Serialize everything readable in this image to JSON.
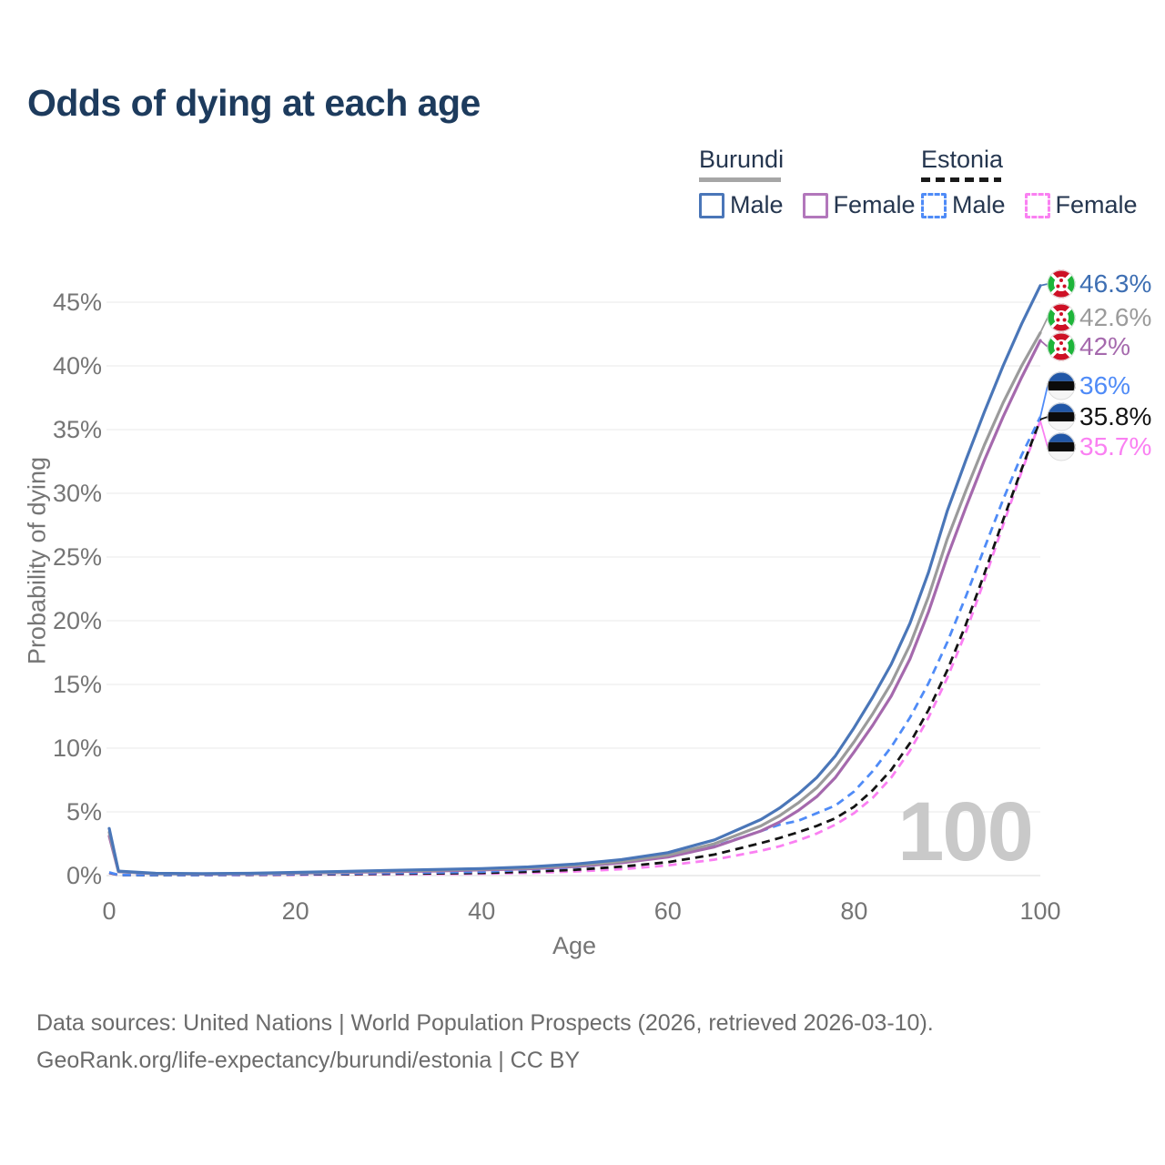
{
  "title": "Odds of dying at each age",
  "legend": {
    "groups": [
      {
        "name": "Burundi",
        "line_style": "solid",
        "underline_color": "#a6a6a6",
        "items": [
          {
            "label": "Male",
            "color": "#4a76b8"
          },
          {
            "label": "Female",
            "color": "#b277bb"
          }
        ]
      },
      {
        "name": "Estonia",
        "line_style": "dashed",
        "underline_color": "#1a1a1a",
        "items": [
          {
            "label": "Male",
            "color": "#4f8bf7"
          },
          {
            "label": "Female",
            "color": "#fa80f2"
          }
        ]
      }
    ]
  },
  "chart_data": {
    "type": "line",
    "title": "Odds of dying at each age",
    "xlabel": "Age",
    "ylabel": "Probability of dying",
    "xlim": [
      0,
      100
    ],
    "ylim_percent": [
      0,
      47
    ],
    "x_ticks": [
      0,
      20,
      40,
      60,
      80,
      100
    ],
    "y_ticks_percent": [
      0,
      5,
      10,
      15,
      20,
      25,
      30,
      35,
      40,
      45
    ],
    "grid": "horizontal",
    "legend_position": "top-right",
    "age_watermark": "100",
    "x": [
      0,
      1,
      5,
      10,
      15,
      20,
      25,
      30,
      35,
      40,
      45,
      50,
      55,
      60,
      65,
      70,
      72,
      74,
      76,
      78,
      80,
      82,
      84,
      86,
      88,
      90,
      92,
      94,
      96,
      98,
      100
    ],
    "series": [
      {
        "name": "Burundi Male",
        "country": "Burundi",
        "sex": "Male",
        "color": "#4a76b8",
        "dash": "solid",
        "end_label": "46.3%",
        "end_label_color": "#3e6fb3",
        "flag": "burundi",
        "values": [
          3.7,
          0.35,
          0.18,
          0.15,
          0.18,
          0.25,
          0.32,
          0.4,
          0.48,
          0.55,
          0.68,
          0.9,
          1.25,
          1.8,
          2.8,
          4.4,
          5.3,
          6.4,
          7.7,
          9.4,
          11.6,
          14.0,
          16.6,
          19.8,
          23.8,
          28.6,
          32.6,
          36.4,
          40.0,
          43.3,
          46.3
        ]
      },
      {
        "name": "Burundi Both sexes",
        "country": "Burundi",
        "sex": "Both",
        "color": "#9b9b9b",
        "dash": "solid",
        "end_label": "42.6%",
        "end_label_color": "#9b9b9b",
        "flag": "burundi",
        "values": [
          3.4,
          0.32,
          0.16,
          0.13,
          0.16,
          0.22,
          0.28,
          0.35,
          0.42,
          0.5,
          0.6,
          0.8,
          1.1,
          1.6,
          2.5,
          3.9,
          4.7,
          5.7,
          6.9,
          8.5,
          10.5,
          12.7,
          15.1,
          18.1,
          21.9,
          26.4,
          30.2,
          33.8,
          37.1,
          40.0,
          42.6
        ]
      },
      {
        "name": "Burundi Female",
        "country": "Burundi",
        "sex": "Female",
        "color": "#a569ad",
        "dash": "solid",
        "end_label": "42%",
        "end_label_color": "#a569ad",
        "flag": "burundi",
        "values": [
          3.1,
          0.3,
          0.15,
          0.12,
          0.14,
          0.19,
          0.24,
          0.3,
          0.36,
          0.44,
          0.53,
          0.7,
          1.0,
          1.45,
          2.25,
          3.5,
          4.2,
          5.1,
          6.2,
          7.7,
          9.7,
          11.8,
          14.1,
          17.0,
          20.7,
          25.0,
          28.9,
          32.6,
          36.0,
          39.1,
          42.0
        ]
      },
      {
        "name": "Estonia Male",
        "country": "Estonia",
        "sex": "Male",
        "color": "#4f8bf7",
        "dash": "dashed",
        "end_label": "36%",
        "end_label_color": "#4f8bf7",
        "flag": "estonia",
        "values": [
          0.25,
          0.05,
          0.04,
          0.05,
          0.08,
          0.12,
          0.16,
          0.2,
          0.24,
          0.3,
          0.45,
          0.65,
          1.0,
          1.5,
          2.3,
          3.5,
          4.0,
          4.3,
          4.9,
          5.5,
          6.6,
          8.2,
          10.1,
          12.4,
          15.1,
          18.3,
          21.9,
          25.7,
          29.5,
          33.0,
          36.0
        ]
      },
      {
        "name": "Estonia Both sexes",
        "country": "Estonia",
        "sex": "Both",
        "color": "#141414",
        "dash": "dashed",
        "end_label": "35.8%",
        "end_label_color": "#141414",
        "flag": "estonia",
        "values": [
          0.22,
          0.04,
          0.03,
          0.04,
          0.06,
          0.09,
          0.11,
          0.14,
          0.17,
          0.21,
          0.3,
          0.45,
          0.7,
          1.05,
          1.65,
          2.55,
          2.95,
          3.4,
          3.9,
          4.5,
          5.4,
          6.7,
          8.3,
          10.4,
          13.0,
          16.1,
          19.7,
          23.7,
          27.9,
          31.9,
          35.8
        ]
      },
      {
        "name": "Estonia Female",
        "country": "Estonia",
        "sex": "Female",
        "color": "#fa80f2",
        "dash": "dashed",
        "end_label": "35.7%",
        "end_label_color": "#fa80f2",
        "flag": "estonia",
        "values": [
          0.2,
          0.04,
          0.03,
          0.03,
          0.04,
          0.06,
          0.08,
          0.1,
          0.12,
          0.15,
          0.21,
          0.32,
          0.5,
          0.8,
          1.25,
          1.95,
          2.3,
          2.75,
          3.3,
          4.0,
          4.9,
          6.1,
          7.7,
          9.8,
          12.4,
          15.5,
          19.1,
          23.2,
          27.5,
          31.7,
          35.7
        ]
      }
    ]
  },
  "footer": {
    "line1": "Data sources: United Nations | World Population Prospects (2026, retrieved 2026-03-10).",
    "line2": "GeoRank.org/life-expectancy/burundi/estonia | CC BY"
  }
}
